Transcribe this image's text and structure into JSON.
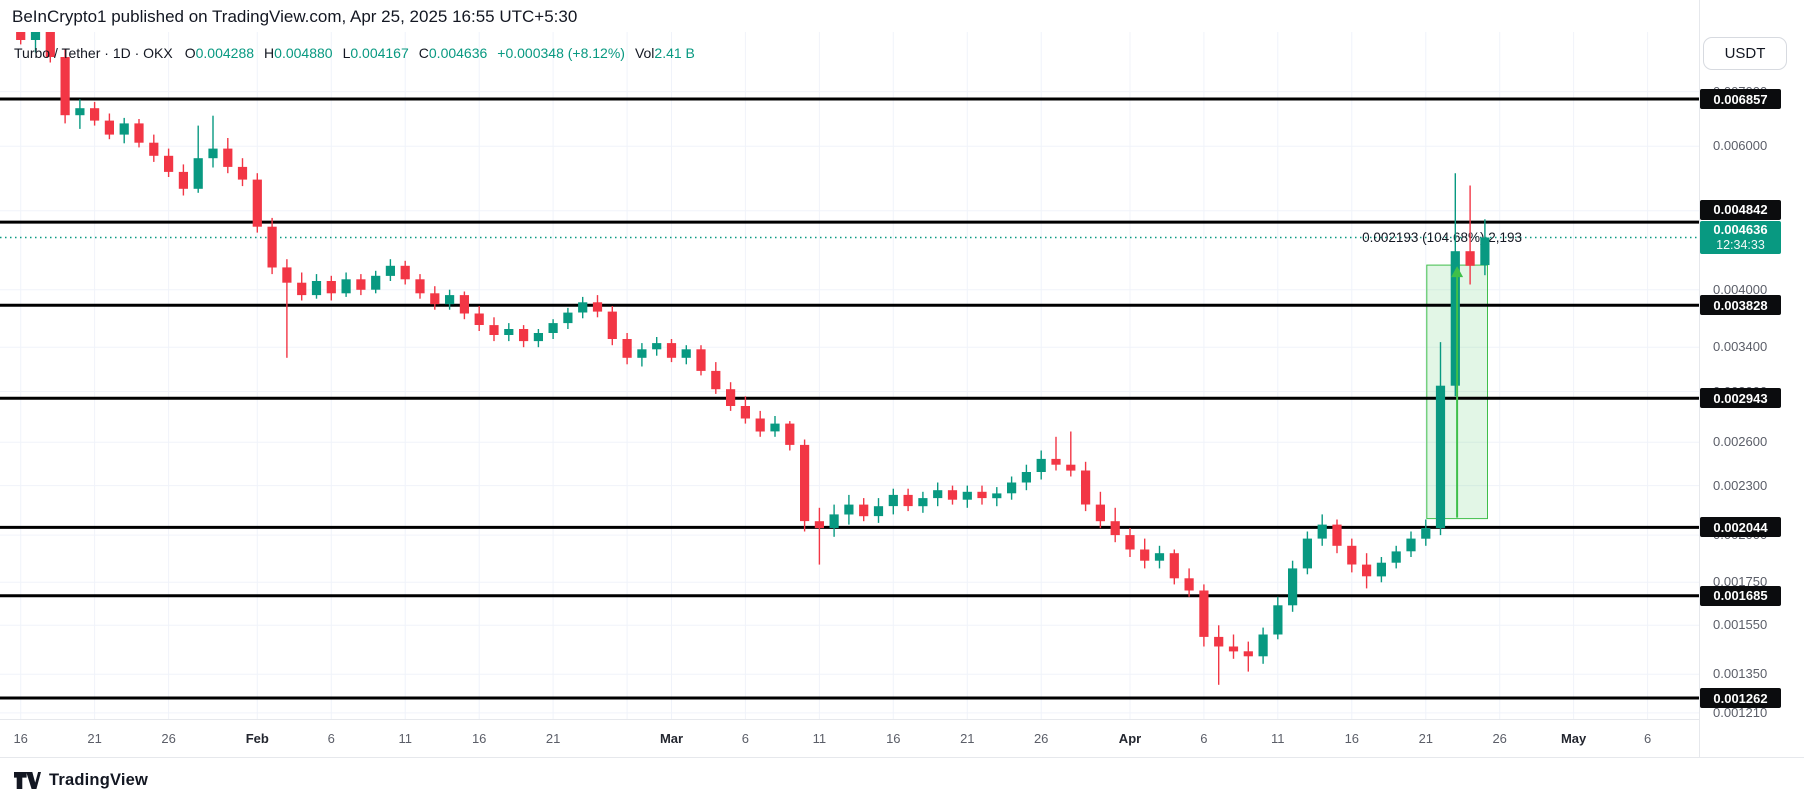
{
  "header": {
    "published_line": "BeInCrypto1 published on TradingView.com, Apr 25, 2025 16:55 UTC+5:30"
  },
  "toolbar": {
    "currency_label": "USDT"
  },
  "legend": {
    "symbol_title": "Turbo / Tether · 1D · OKX",
    "ohlc": {
      "o_label": "O",
      "o_value": "0.004288",
      "h_label": "H",
      "h_value": "0.004880",
      "l_label": "L",
      "l_value": "0.004167",
      "c_label": "C",
      "c_value": "0.004636",
      "change_value": "+0.000348 (+8.12%)"
    },
    "volume": {
      "label": "Vol",
      "value": "2.41 B"
    }
  },
  "footer": {
    "logo_text": "TradingView"
  },
  "colors": {
    "up": "#089981",
    "down": "#F23645",
    "level_line": "#000000",
    "badge_bg": "#0b0c0e",
    "badge_text": "#ffffff",
    "current_badge_bg": "#089981",
    "grid": "#f0f3fa",
    "axis_text": "#5b5e68",
    "annotation_text": "#131722",
    "measure_green": "#3fbf4a",
    "measure_fill": "rgba(76,196,98,0.16)"
  },
  "chart_data": {
    "type": "candlestick",
    "title": "Turbo / Tether",
    "interval": "1D",
    "exchange": "OKX",
    "quote_currency": "USDT",
    "scale": "logarithmic",
    "start_date": "2025-01-16",
    "end_date": "2025-04-25",
    "current_price": 0.004636,
    "current_price_label": "0.004636",
    "countdown": "12:34:33",
    "y_ticks": [
      {
        "label": "0.007000",
        "price": 0.007
      },
      {
        "label": "0.006000",
        "price": 0.006
      },
      {
        "label": "0.005000",
        "price": 0.005
      },
      {
        "label": "0.004000",
        "price": 0.004
      },
      {
        "label": "0.003400",
        "price": 0.0034
      },
      {
        "label": "0.003000",
        "price": 0.003
      },
      {
        "label": "0.002600",
        "price": 0.0026
      },
      {
        "label": "0.002300",
        "price": 0.0023
      },
      {
        "label": "0.002000",
        "price": 0.002
      },
      {
        "label": "0.001750",
        "price": 0.00175
      },
      {
        "label": "0.001550",
        "price": 0.00155
      },
      {
        "label": "0.001350",
        "price": 0.00135
      },
      {
        "label": "0.001210",
        "price": 0.00121
      }
    ],
    "level_lines": [
      {
        "label": "0.006857",
        "price": 0.006857
      },
      {
        "label": "0.004842",
        "price": 0.004842
      },
      {
        "label": "0.003828",
        "price": 0.003828
      },
      {
        "label": "0.002943",
        "price": 0.002943
      },
      {
        "label": "0.002044",
        "price": 0.002044
      },
      {
        "label": "0.001685",
        "price": 0.001685
      },
      {
        "label": "0.001262",
        "price": 0.001262
      }
    ],
    "x_ticks": [
      {
        "label": "16",
        "day": 0,
        "bold": false
      },
      {
        "label": "21",
        "day": 5,
        "bold": false
      },
      {
        "label": "26",
        "day": 10,
        "bold": false
      },
      {
        "label": "Feb",
        "day": 16,
        "bold": true
      },
      {
        "label": "6",
        "day": 21,
        "bold": false
      },
      {
        "label": "11",
        "day": 26,
        "bold": false
      },
      {
        "label": "16",
        "day": 31,
        "bold": false
      },
      {
        "label": "21",
        "day": 36,
        "bold": false
      },
      {
        "label": "",
        "day": 41,
        "bold": false
      },
      {
        "label": "Mar",
        "day": 44,
        "bold": true
      },
      {
        "label": "6",
        "day": 49,
        "bold": false
      },
      {
        "label": "11",
        "day": 54,
        "bold": false
      },
      {
        "label": "16",
        "day": 59,
        "bold": false
      },
      {
        "label": "21",
        "day": 64,
        "bold": false
      },
      {
        "label": "26",
        "day": 69,
        "bold": false
      },
      {
        "label": "Apr",
        "day": 75,
        "bold": true
      },
      {
        "label": "6",
        "day": 80,
        "bold": false
      },
      {
        "label": "11",
        "day": 85,
        "bold": false
      },
      {
        "label": "16",
        "day": 90,
        "bold": false
      },
      {
        "label": "21",
        "day": 95,
        "bold": false
      },
      {
        "label": "26",
        "day": 100,
        "bold": false
      },
      {
        "label": "May",
        "day": 105,
        "bold": true
      },
      {
        "label": "6",
        "day": 110,
        "bold": false
      }
    ],
    "candles": [
      [
        0.00835,
        0.0085,
        0.008,
        0.0081
      ],
      [
        0.0081,
        0.00845,
        0.00782,
        0.00838
      ],
      [
        0.00838,
        0.00848,
        0.0076,
        0.00772
      ],
      [
        0.00772,
        0.0079,
        0.0064,
        0.00655
      ],
      [
        0.00655,
        0.00685,
        0.0063,
        0.00668
      ],
      [
        0.00668,
        0.0068,
        0.00636,
        0.00645
      ],
      [
        0.00645,
        0.00658,
        0.00612,
        0.0062
      ],
      [
        0.0062,
        0.0065,
        0.00605,
        0.0064
      ],
      [
        0.0064,
        0.00648,
        0.00598,
        0.00606
      ],
      [
        0.00606,
        0.0062,
        0.00574,
        0.00584
      ],
      [
        0.00584,
        0.00596,
        0.0055,
        0.00558
      ],
      [
        0.00558,
        0.0057,
        0.00522,
        0.00532
      ],
      [
        0.00532,
        0.00636,
        0.00526,
        0.0058
      ],
      [
        0.0058,
        0.00654,
        0.00565,
        0.00596
      ],
      [
        0.00596,
        0.00614,
        0.00556,
        0.00566
      ],
      [
        0.00566,
        0.0058,
        0.00536,
        0.00546
      ],
      [
        0.00546,
        0.00556,
        0.0047,
        0.00478
      ],
      [
        0.00478,
        0.0049,
        0.00418,
        0.00426
      ],
      [
        0.00426,
        0.00436,
        0.0033,
        0.00408
      ],
      [
        0.00408,
        0.0042,
        0.00388,
        0.00394
      ],
      [
        0.00394,
        0.00418,
        0.0039,
        0.0041
      ],
      [
        0.0041,
        0.00416,
        0.00388,
        0.00396
      ],
      [
        0.00396,
        0.0042,
        0.00392,
        0.00412
      ],
      [
        0.00412,
        0.00418,
        0.00394,
        0.004
      ],
      [
        0.004,
        0.00422,
        0.00396,
        0.00416
      ],
      [
        0.00416,
        0.00436,
        0.0041,
        0.00428
      ],
      [
        0.00428,
        0.00434,
        0.00406,
        0.00412
      ],
      [
        0.00412,
        0.00418,
        0.0039,
        0.00396
      ],
      [
        0.00396,
        0.00404,
        0.00378,
        0.00384
      ],
      [
        0.00384,
        0.004,
        0.00378,
        0.00394
      ],
      [
        0.00394,
        0.00398,
        0.00368,
        0.00374
      ],
      [
        0.00374,
        0.00382,
        0.00356,
        0.00362
      ],
      [
        0.00362,
        0.0037,
        0.00346,
        0.00352
      ],
      [
        0.00352,
        0.00364,
        0.00346,
        0.00358
      ],
      [
        0.00358,
        0.00362,
        0.0034,
        0.00346
      ],
      [
        0.00346,
        0.00358,
        0.0034,
        0.00354
      ],
      [
        0.00354,
        0.00368,
        0.00348,
        0.00364
      ],
      [
        0.00364,
        0.0038,
        0.00358,
        0.00375
      ],
      [
        0.00375,
        0.00392,
        0.00369,
        0.00386
      ],
      [
        0.00386,
        0.00394,
        0.0037,
        0.00376
      ],
      [
        0.00376,
        0.00382,
        0.00342,
        0.00348
      ],
      [
        0.00348,
        0.00354,
        0.00324,
        0.0033
      ],
      [
        0.0033,
        0.00344,
        0.00322,
        0.00338
      ],
      [
        0.00338,
        0.0035,
        0.00332,
        0.00344
      ],
      [
        0.00344,
        0.00348,
        0.00326,
        0.0033
      ],
      [
        0.0033,
        0.00342,
        0.00324,
        0.00338
      ],
      [
        0.00338,
        0.00342,
        0.00314,
        0.00318
      ],
      [
        0.00318,
        0.00326,
        0.00298,
        0.00302
      ],
      [
        0.00302,
        0.00308,
        0.00284,
        0.00288
      ],
      [
        0.00288,
        0.00296,
        0.00274,
        0.00278
      ],
      [
        0.00278,
        0.00284,
        0.00264,
        0.00268
      ],
      [
        0.00268,
        0.0028,
        0.00264,
        0.00274
      ],
      [
        0.00274,
        0.00276,
        0.00254,
        0.00258
      ],
      [
        0.00258,
        0.00262,
        0.00202,
        0.00208
      ],
      [
        0.00208,
        0.00216,
        0.00184,
        0.00204
      ],
      [
        0.00204,
        0.00218,
        0.00199,
        0.00212
      ],
      [
        0.00212,
        0.00224,
        0.00206,
        0.00218
      ],
      [
        0.00218,
        0.00222,
        0.00208,
        0.00211
      ],
      [
        0.00211,
        0.00222,
        0.00207,
        0.00217
      ],
      [
        0.00217,
        0.00228,
        0.00212,
        0.00224
      ],
      [
        0.00224,
        0.00228,
        0.00214,
        0.00217
      ],
      [
        0.00217,
        0.00226,
        0.00213,
        0.00222
      ],
      [
        0.00222,
        0.00232,
        0.00217,
        0.00227
      ],
      [
        0.00227,
        0.0023,
        0.00218,
        0.00221
      ],
      [
        0.00221,
        0.0023,
        0.00216,
        0.00226
      ],
      [
        0.00226,
        0.0023,
        0.00218,
        0.00222
      ],
      [
        0.00222,
        0.00229,
        0.00217,
        0.00225
      ],
      [
        0.00225,
        0.00236,
        0.00221,
        0.00232
      ],
      [
        0.00232,
        0.00244,
        0.00227,
        0.00239
      ],
      [
        0.00239,
        0.00254,
        0.00234,
        0.00248
      ],
      [
        0.00248,
        0.00264,
        0.0024,
        0.00244
      ],
      [
        0.00244,
        0.00268,
        0.00236,
        0.0024
      ],
      [
        0.0024,
        0.00246,
        0.00214,
        0.00218
      ],
      [
        0.00218,
        0.00226,
        0.00204,
        0.00208
      ],
      [
        0.00208,
        0.00216,
        0.00196,
        0.002
      ],
      [
        0.002,
        0.00204,
        0.00188,
        0.00192
      ],
      [
        0.00192,
        0.00198,
        0.00182,
        0.00186
      ],
      [
        0.00186,
        0.00194,
        0.00182,
        0.0019
      ],
      [
        0.0019,
        0.00192,
        0.00174,
        0.00177
      ],
      [
        0.00177,
        0.00182,
        0.00168,
        0.00171
      ],
      [
        0.00171,
        0.00174,
        0.00146,
        0.0015
      ],
      [
        0.0015,
        0.00155,
        0.00131,
        0.00146
      ],
      [
        0.00146,
        0.00151,
        0.00141,
        0.00144
      ],
      [
        0.00144,
        0.00148,
        0.00136,
        0.00142
      ],
      [
        0.00142,
        0.00154,
        0.00139,
        0.00151
      ],
      [
        0.00151,
        0.00168,
        0.00149,
        0.00164
      ],
      [
        0.00164,
        0.00186,
        0.00161,
        0.00182
      ],
      [
        0.00182,
        0.00202,
        0.00179,
        0.00198
      ],
      [
        0.00198,
        0.00212,
        0.00194,
        0.00206
      ],
      [
        0.00206,
        0.00209,
        0.0019,
        0.00194
      ],
      [
        0.00194,
        0.00198,
        0.0018,
        0.00184
      ],
      [
        0.00184,
        0.0019,
        0.00172,
        0.00178
      ],
      [
        0.00178,
        0.00188,
        0.00175,
        0.00185
      ],
      [
        0.00185,
        0.00194,
        0.00182,
        0.00191
      ],
      [
        0.00191,
        0.00202,
        0.00188,
        0.00198
      ],
      [
        0.00198,
        0.00209,
        0.00194,
        0.00204
      ],
      [
        0.00204,
        0.00345,
        0.002,
        0.00305
      ],
      [
        0.00305,
        0.00556,
        0.00296,
        0.00446
      ],
      [
        0.00446,
        0.00537,
        0.00406,
        0.00428
      ],
      [
        0.004288,
        0.00488,
        0.004167,
        0.004636
      ]
    ],
    "measure_tool": {
      "change_label": "0.002193 (104.68%) 2,193",
      "from_price": 0.002095,
      "to_price": 0.004288,
      "start_day": 95,
      "end_day": 99
    }
  }
}
